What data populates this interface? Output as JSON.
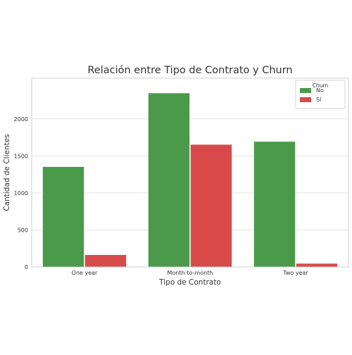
{
  "chart_data": {
    "type": "bar",
    "title": "Relación entre Tipo de Contrato y Churn",
    "xlabel": "Tipo de Contrato",
    "ylabel": "Cantidad de Clientes",
    "categories": [
      "One year",
      "Month-to-month",
      "Two year"
    ],
    "series": [
      {
        "name": "No",
        "values": [
          1355,
          2350,
          1695
        ],
        "color": "#4a9a4a"
      },
      {
        "name": "Sí",
        "values": [
          165,
          1655,
          48
        ],
        "color": "#d84a4a"
      }
    ],
    "ylim": [
      0,
      2550
    ],
    "yticks": [
      0,
      500,
      1000,
      1500,
      2000
    ],
    "grid": true,
    "legend": {
      "title": "Churn",
      "placement": "top-right"
    }
  }
}
